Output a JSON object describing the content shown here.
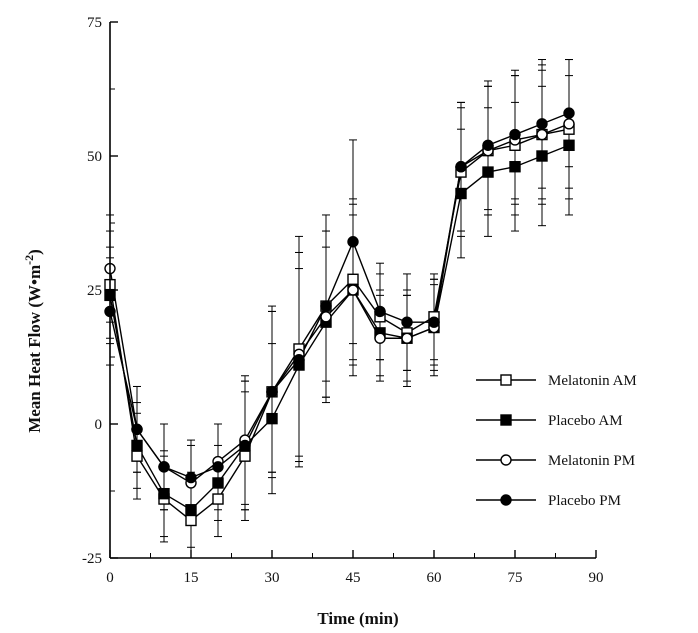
{
  "chart_data": {
    "type": "line",
    "xlabel": "Time (min)",
    "ylabel_main": "Mean Heat Flow (W•m",
    "ylabel_sup": "-2",
    "ylabel_close": ")",
    "xlim": [
      0,
      90
    ],
    "ylim": [
      -25,
      75
    ],
    "xticks": [
      0,
      15,
      30,
      45,
      60,
      75,
      90
    ],
    "yticks": [
      -25,
      0,
      25,
      50,
      75
    ],
    "grid": false,
    "legend_position": "right",
    "x": [
      0,
      5,
      10,
      15,
      20,
      25,
      30,
      35,
      40,
      45,
      50,
      55,
      60,
      65,
      70,
      75,
      80,
      85
    ],
    "series": [
      {
        "name": "Melatonin AM",
        "marker": "open-square",
        "values": [
          26,
          -6,
          -14,
          -18,
          -14,
          -6,
          6,
          14,
          22,
          27,
          20,
          17,
          20,
          47,
          51,
          52,
          54,
          55
        ],
        "errors": [
          10,
          8,
          8,
          7,
          7,
          12,
          16,
          21,
          14,
          15,
          8,
          7,
          8,
          12,
          12,
          13,
          13,
          13
        ]
      },
      {
        "name": "Placebo AM",
        "marker": "filled-square",
        "values": [
          24,
          -4,
          -13,
          -16,
          -11,
          -4,
          1,
          11,
          19,
          25,
          17,
          16,
          18,
          43,
          47,
          48,
          50,
          52
        ],
        "errors": [
          9,
          8,
          8,
          7,
          7,
          12,
          14,
          18,
          14,
          14,
          8,
          8,
          8,
          12,
          12,
          12,
          13,
          13
        ]
      },
      {
        "name": "Melatonin PM",
        "marker": "open-circle",
        "values": [
          29,
          -1,
          -8,
          -11,
          -7,
          -3,
          6,
          13,
          20,
          25,
          16,
          16,
          18,
          48,
          51,
          53,
          54,
          56
        ],
        "errors": [
          10,
          8,
          8,
          7,
          7,
          12,
          15,
          19,
          16,
          16,
          8,
          9,
          9,
          12,
          12,
          12,
          12,
          12
        ]
      },
      {
        "name": "Placebo PM",
        "marker": "filled-circle",
        "values": [
          21,
          -1,
          -8,
          -10,
          -8,
          -4,
          6,
          12,
          22,
          34,
          21,
          19,
          19,
          48,
          52,
          54,
          56,
          58
        ],
        "errors": [
          10,
          8,
          8,
          7,
          8,
          12,
          15,
          20,
          17,
          19,
          9,
          9,
          8,
          12,
          12,
          12,
          12,
          10
        ]
      }
    ]
  }
}
